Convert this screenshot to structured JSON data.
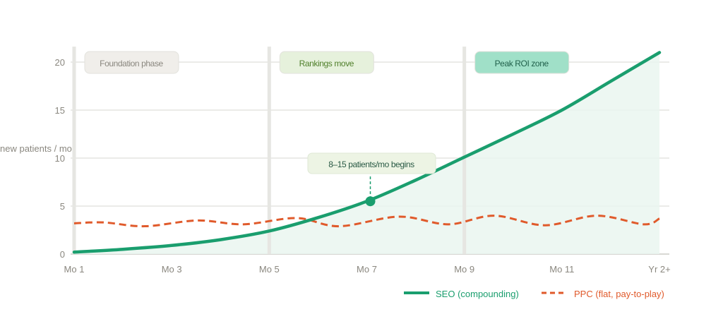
{
  "chart_data": {
    "type": "line",
    "title": "",
    "xlabel": "",
    "ylabel": "new patients / mo",
    "ylim": [
      0,
      22
    ],
    "xlim": [
      1,
      13
    ],
    "x_ticks": [
      {
        "x": 1,
        "label": "Mo 1"
      },
      {
        "x": 3,
        "label": "Mo 3"
      },
      {
        "x": 5,
        "label": "Mo 5"
      },
      {
        "x": 7,
        "label": "Mo 7"
      },
      {
        "x": 9,
        "label": "Mo 9"
      },
      {
        "x": 11,
        "label": "Mo 11"
      },
      {
        "x": 13,
        "label": "Yr 2+"
      }
    ],
    "y_ticks": [
      0,
      5,
      10,
      15,
      20
    ],
    "grid": true,
    "legend_position": "bottom-right",
    "series": [
      {
        "name": "SEO (compounding)",
        "color": "#1a9e6e",
        "style": "solid",
        "x": [
          1,
          2,
          3,
          4,
          5,
          6,
          7,
          8,
          9,
          10,
          11,
          12,
          13
        ],
        "y": [
          0.2,
          0.5,
          0.9,
          1.5,
          2.4,
          3.8,
          5.5,
          7.7,
          10.1,
          12.5,
          15.0,
          18.0,
          21.0
        ]
      },
      {
        "name": "PPC (flat, pay-to-play)",
        "color": "#e05a2b",
        "style": "dashed",
        "x": [
          1,
          1.6,
          2.45,
          3.53,
          4.47,
          5.56,
          6.43,
          7.66,
          8.67,
          9.61,
          10.65,
          11.71,
          12.68,
          13
        ],
        "y": [
          3.2,
          3.3,
          2.9,
          3.5,
          3.1,
          3.75,
          2.9,
          3.9,
          3.1,
          4.0,
          3.0,
          4.0,
          3.1,
          3.7
        ]
      }
    ],
    "phase_markers": [
      {
        "x": 1,
        "label": "Foundation phase",
        "fill": "#f0eeea",
        "text_color": "#8a877f"
      },
      {
        "x": 5,
        "label": "Rankings move",
        "fill": "#e6f1dc",
        "text_color": "#4f7f2a"
      },
      {
        "x": 9,
        "label": "Peak ROI zone",
        "fill": "#a0e0c8",
        "text_color": "#1f5f4a"
      }
    ],
    "annotation": {
      "x": 7,
      "y": 5.5,
      "label": "8–15 patients/mo begins"
    }
  }
}
